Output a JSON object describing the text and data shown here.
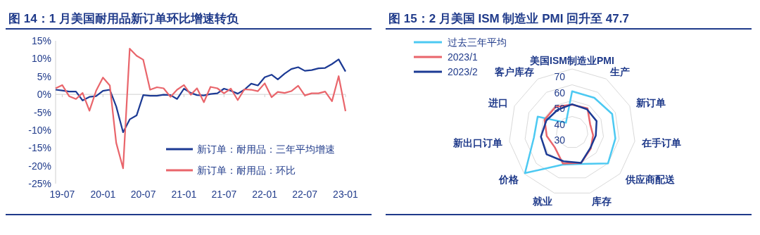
{
  "chart_data": [
    {
      "type": "line",
      "title": "图 14：1 月美国耐用品新订单环比增速转负",
      "x": [
        "2019-06",
        "2019-07",
        "2019-08",
        "2019-09",
        "2019-10",
        "2019-11",
        "2019-12",
        "2020-01",
        "2020-02",
        "2020-03",
        "2020-04",
        "2020-05",
        "2020-06",
        "2020-07",
        "2020-08",
        "2020-09",
        "2020-10",
        "2020-11",
        "2020-12",
        "2021-01",
        "2021-02",
        "2021-03",
        "2021-04",
        "2021-05",
        "2021-06",
        "2021-07",
        "2021-08",
        "2021-09",
        "2021-10",
        "2021-11",
        "2021-12",
        "2022-01",
        "2022-02",
        "2022-03",
        "2022-04",
        "2022-05",
        "2022-06",
        "2022-07",
        "2022-08",
        "2022-09",
        "2022-10",
        "2022-11",
        "2022-12",
        "2023-01"
      ],
      "series": [
        {
          "name": "新订单：耐用品：三年平均增速",
          "color": "#1c3a94",
          "values": [
            1.3,
            1.1,
            0.8,
            0.8,
            -1.7,
            -0.7,
            -0.5,
            1.0,
            1.3,
            -3.4,
            -10.6,
            -7.0,
            -5.9,
            -0.2,
            -0.4,
            -0.4,
            -0.1,
            -0.2,
            -1.3,
            1.6,
            0.4,
            -0.2,
            -0.3,
            0.1,
            0.3,
            1.6,
            1.0,
            0.2,
            1.3,
            3.0,
            2.5,
            4.8,
            5.5,
            4.2,
            5.8,
            7.1,
            7.6,
            6.6,
            6.8,
            7.3,
            7.4,
            8.5,
            9.8,
            6.4
          ]
        },
        {
          "name": "新订单：耐用品：环比",
          "color": "#e9656b",
          "values": [
            1.7,
            2.6,
            -0.5,
            -1.3,
            0.4,
            -4.6,
            1.0,
            4.7,
            2.5,
            -13.6,
            -20.7,
            12.8,
            10.8,
            9.7,
            1.3,
            2.0,
            1.7,
            -0.7,
            1.3,
            2.6,
            -0.1,
            1.7,
            -2.2,
            2.1,
            1.7,
            0.3,
            1.6,
            -1.6,
            1.4,
            1.3,
            0.9,
            3.1,
            -0.8,
            0.7,
            0.4,
            0.9,
            2.4,
            -0.3,
            0.3,
            0.3,
            0.8,
            -1.9,
            5.1,
            -4.7
          ]
        }
      ],
      "xlim": [
        "2019-06",
        "2023-01"
      ],
      "xticks": [
        {
          "value": "2019-07",
          "label": "19-07"
        },
        {
          "value": "2020-01",
          "label": "20-01"
        },
        {
          "value": "2020-07",
          "label": "20-07"
        },
        {
          "value": "2021-01",
          "label": "21-01"
        },
        {
          "value": "2021-07",
          "label": "21-07"
        },
        {
          "value": "2022-01",
          "label": "22-01"
        },
        {
          "value": "2022-07",
          "label": "22-07"
        },
        {
          "value": "2023-01",
          "label": "23-01"
        }
      ],
      "ylim": [
        -25,
        15
      ],
      "yticks": [
        {
          "value": -25,
          "label": "-25%"
        },
        {
          "value": -20,
          "label": "-20%"
        },
        {
          "value": -15,
          "label": "-15%"
        },
        {
          "value": -10,
          "label": "-10%"
        },
        {
          "value": -5,
          "label": "-5%"
        },
        {
          "value": 0,
          "label": "0%"
        },
        {
          "value": 5,
          "label": "5%"
        },
        {
          "value": 10,
          "label": "10%"
        },
        {
          "value": 15,
          "label": "15%"
        }
      ],
      "legend": "bottom right",
      "marker": "none",
      "line_style": "solid"
    },
    {
      "type": "radar",
      "title": "图 15：2 月美国 ISM 制造业 PMI 回升至 47.7",
      "categories": [
        "美国ISM制造业PMI",
        "生产",
        "新订单",
        "在手订单",
        "供应商配送",
        "库存",
        "就业",
        "价格",
        "新出口订单",
        "进口",
        "客户库存"
      ],
      "series": [
        {
          "name": "过去三年平均",
          "color": "#4cc9f2",
          "values": [
            55.9,
            55.9,
            57.8,
            57.6,
            60.0,
            50.9,
            51.3,
            69.4,
            54.4,
            53.9,
            37.2
          ]
        },
        {
          "name": "2023/1",
          "color": "#e9656b",
          "values": [
            47.4,
            48.0,
            42.5,
            43.4,
            45.6,
            50.2,
            50.6,
            44.5,
            46.2,
            49.1,
            49.2
          ]
        },
        {
          "name": "2023/2",
          "color": "#1c3a94",
          "values": [
            47.7,
            47.3,
            47.0,
            45.1,
            45.2,
            50.1,
            49.1,
            51.3,
            49.9,
            47.9,
            46.9
          ]
        }
      ],
      "ylim": [
        30,
        70
      ],
      "yticks": [
        30,
        40,
        50,
        60,
        70
      ],
      "grid": true,
      "legend": "top left"
    }
  ]
}
